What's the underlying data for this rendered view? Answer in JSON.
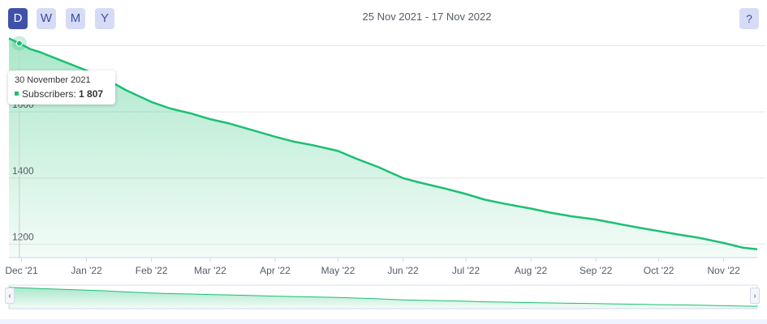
{
  "range_buttons": [
    {
      "label": "D",
      "active": true
    },
    {
      "label": "W",
      "active": false
    },
    {
      "label": "M",
      "active": false
    },
    {
      "label": "Y",
      "active": false
    }
  ],
  "date_range": "25 Nov 2021 - 17 Nov 2022",
  "help_label": "?",
  "navigator": {
    "left_arrow": "‹",
    "right_arrow": "›"
  },
  "tooltip": {
    "date": "30 November 2021",
    "series": "Subscribers:",
    "value": "1 807"
  },
  "chart_data": {
    "type": "area",
    "title": "",
    "xlabel": "",
    "ylabel": "",
    "series": [
      {
        "name": "Subscribers",
        "color": "#1cbf73",
        "x": [
          "2021-11-25",
          "2021-11-30",
          "2021-12-05",
          "2021-12-10",
          "2021-12-20",
          "2022-01-01",
          "2022-01-10",
          "2022-01-20",
          "2022-02-01",
          "2022-02-10",
          "2022-02-20",
          "2022-03-01",
          "2022-03-10",
          "2022-03-20",
          "2022-04-01",
          "2022-04-10",
          "2022-04-20",
          "2022-05-01",
          "2022-05-10",
          "2022-05-20",
          "2022-06-01",
          "2022-06-10",
          "2022-06-20",
          "2022-07-01",
          "2022-07-10",
          "2022-07-20",
          "2022-08-01",
          "2022-08-10",
          "2022-08-20",
          "2022-09-01",
          "2022-09-10",
          "2022-09-20",
          "2022-10-01",
          "2022-10-10",
          "2022-10-20",
          "2022-11-01",
          "2022-11-10",
          "2022-11-17"
        ],
        "values": [
          1822,
          1807,
          1790,
          1780,
          1755,
          1725,
          1700,
          1665,
          1630,
          1610,
          1595,
          1578,
          1565,
          1547,
          1525,
          1510,
          1498,
          1482,
          1458,
          1434,
          1400,
          1385,
          1370,
          1352,
          1335,
          1322,
          1308,
          1296,
          1285,
          1275,
          1264,
          1252,
          1240,
          1230,
          1220,
          1204,
          1190,
          1185
        ]
      }
    ],
    "x_ticks": [
      {
        "date": "2021-12-01",
        "label": "Dec '21"
      },
      {
        "date": "2022-01-01",
        "label": "Jan '22"
      },
      {
        "date": "2022-02-01",
        "label": "Feb '22"
      },
      {
        "date": "2022-03-01",
        "label": "Mar '22"
      },
      {
        "date": "2022-04-01",
        "label": "Apr '22"
      },
      {
        "date": "2022-05-01",
        "label": "May '22"
      },
      {
        "date": "2022-06-01",
        "label": "Jun '22"
      },
      {
        "date": "2022-07-01",
        "label": "Jul '22"
      },
      {
        "date": "2022-08-01",
        "label": "Aug '22"
      },
      {
        "date": "2022-09-01",
        "label": "Sep '22"
      },
      {
        "date": "2022-10-01",
        "label": "Oct '22"
      },
      {
        "date": "2022-11-01",
        "label": "Nov '22"
      }
    ],
    "y_ticks": [
      1200,
      1400,
      1600,
      1800
    ],
    "y_tick_labels": [
      "1200",
      "1400",
      "1600",
      ""
    ],
    "xlim": [
      "2021-11-25",
      "2022-11-17"
    ],
    "ylim": [
      1160,
      1840
    ],
    "grid": "horizontal",
    "legend": "none",
    "highlight": {
      "date": "2021-11-30",
      "value": 1807
    }
  }
}
